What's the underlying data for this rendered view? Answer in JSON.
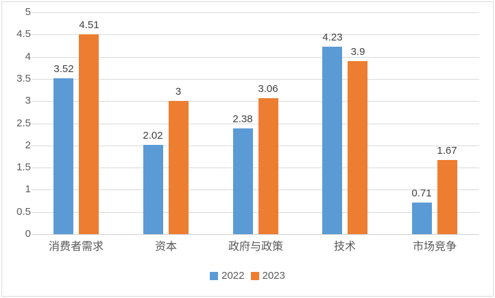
{
  "chart_data": {
    "type": "bar",
    "categories": [
      "消费者需求",
      "资本",
      "政府与政策",
      "技术",
      "市场竞争"
    ],
    "series": [
      {
        "name": "2022",
        "color": "#5B9BD5",
        "values": [
          3.52,
          2.02,
          2.38,
          4.23,
          0.71
        ]
      },
      {
        "name": "2023",
        "color": "#ED7D31",
        "values": [
          4.51,
          3,
          3.06,
          3.9,
          1.67
        ]
      }
    ],
    "title": "",
    "xlabel": "",
    "ylabel": "",
    "ylim": [
      0,
      5
    ],
    "ytick_step": 0.5,
    "ytick_labels": [
      "0",
      "0.5",
      "1",
      "1.5",
      "2",
      "2.5",
      "3",
      "3.5",
      "4",
      "4.5",
      "5"
    ],
    "grid": true,
    "data_labels_shown": true,
    "legend_position": "bottom",
    "legend_entries": [
      "2022",
      "2023"
    ]
  },
  "colors": {
    "series_2022": "#5B9BD5",
    "series_2023": "#ED7D31",
    "gridline": "#D9D9D9",
    "axis_line": "#D0D0D0",
    "chart_border": "#D9D9D9",
    "tick_label_text": "#595959",
    "category_label_text": "#595959",
    "data_label_text": "#404040",
    "legend_text": "#595959",
    "background": "#FFFFFF"
  }
}
